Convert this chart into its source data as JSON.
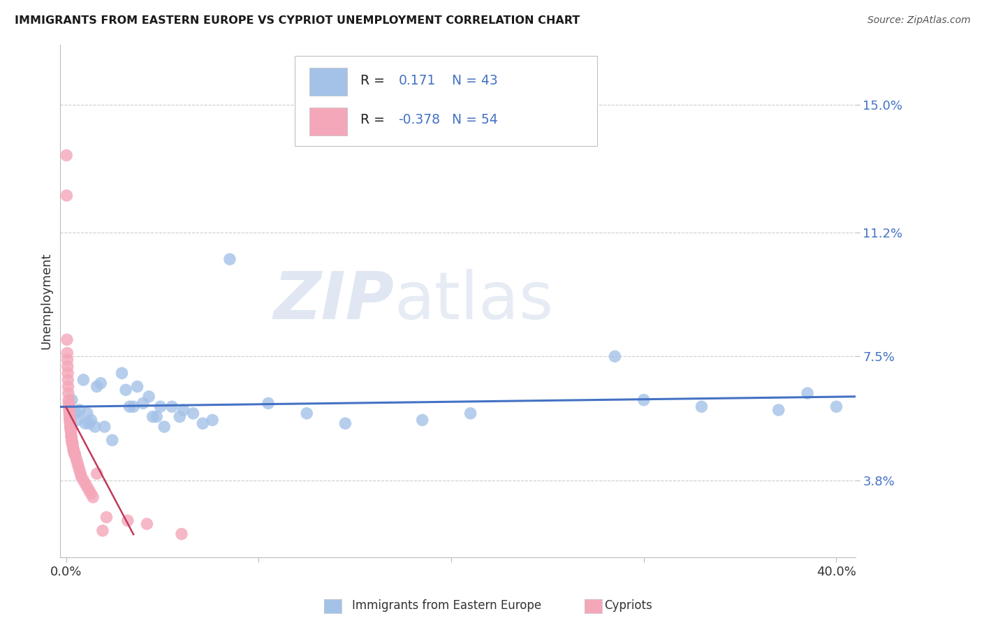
{
  "title": "IMMIGRANTS FROM EASTERN EUROPE VS CYPRIOT UNEMPLOYMENT CORRELATION CHART",
  "source": "Source: ZipAtlas.com",
  "ylabel": "Unemployment",
  "y_ticks": [
    3.8,
    7.5,
    11.2,
    15.0
  ],
  "y_lim": [
    1.5,
    16.8
  ],
  "x_lim": [
    -0.3,
    41.0
  ],
  "x_ticks": [
    0,
    10,
    20,
    30,
    40
  ],
  "watermark_zip": "ZIP",
  "watermark_atlas": "atlas",
  "blue_color": "#a4c2e8",
  "pink_color": "#f4a7b9",
  "blue_line_color": "#4472c4",
  "pink_line_color": "#c0395a",
  "title_color": "#1a1a1a",
  "source_color": "#555555",
  "tick_color": "#4472c4",
  "label_color": "#333333",
  "grid_color": "#cccccc",
  "legend_border_color": "#c0c0c0",
  "blue_scatter": [
    [
      0.3,
      6.2
    ],
    [
      0.5,
      5.8
    ],
    [
      0.6,
      5.6
    ],
    [
      0.7,
      5.9
    ],
    [
      0.9,
      6.8
    ],
    [
      1.0,
      5.5
    ],
    [
      1.1,
      5.8
    ],
    [
      1.2,
      5.5
    ],
    [
      1.3,
      5.6
    ],
    [
      1.5,
      5.4
    ],
    [
      1.6,
      6.6
    ],
    [
      1.8,
      6.7
    ],
    [
      2.0,
      5.4
    ],
    [
      2.4,
      5.0
    ],
    [
      2.9,
      7.0
    ],
    [
      3.1,
      6.5
    ],
    [
      3.3,
      6.0
    ],
    [
      3.5,
      6.0
    ],
    [
      3.7,
      6.6
    ],
    [
      4.0,
      6.1
    ],
    [
      4.3,
      6.3
    ],
    [
      4.5,
      5.7
    ],
    [
      4.7,
      5.7
    ],
    [
      4.9,
      6.0
    ],
    [
      5.1,
      5.4
    ],
    [
      5.5,
      6.0
    ],
    [
      5.9,
      5.7
    ],
    [
      6.1,
      5.9
    ],
    [
      6.6,
      5.8
    ],
    [
      7.1,
      5.5
    ],
    [
      7.6,
      5.6
    ],
    [
      8.5,
      10.4
    ],
    [
      10.5,
      6.1
    ],
    [
      12.5,
      5.8
    ],
    [
      14.5,
      5.5
    ],
    [
      18.5,
      5.6
    ],
    [
      21.0,
      5.8
    ],
    [
      28.5,
      7.5
    ],
    [
      30.0,
      6.2
    ],
    [
      33.0,
      6.0
    ],
    [
      37.0,
      5.9
    ],
    [
      38.5,
      6.4
    ],
    [
      40.0,
      6.0
    ]
  ],
  "pink_scatter": [
    [
      0.02,
      13.5
    ],
    [
      0.03,
      12.3
    ],
    [
      0.05,
      8.0
    ],
    [
      0.06,
      7.6
    ],
    [
      0.07,
      7.4
    ],
    [
      0.08,
      7.2
    ],
    [
      0.09,
      7.0
    ],
    [
      0.1,
      6.8
    ],
    [
      0.11,
      6.6
    ],
    [
      0.12,
      6.4
    ],
    [
      0.13,
      6.2
    ],
    [
      0.14,
      6.1
    ],
    [
      0.15,
      6.0
    ],
    [
      0.16,
      5.9
    ],
    [
      0.17,
      5.8
    ],
    [
      0.18,
      5.7
    ],
    [
      0.19,
      5.6
    ],
    [
      0.2,
      5.6
    ],
    [
      0.21,
      5.5
    ],
    [
      0.22,
      5.4
    ],
    [
      0.23,
      5.4
    ],
    [
      0.24,
      5.3
    ],
    [
      0.25,
      5.3
    ],
    [
      0.26,
      5.2
    ],
    [
      0.27,
      5.1
    ],
    [
      0.28,
      5.1
    ],
    [
      0.29,
      5.0
    ],
    [
      0.3,
      5.0
    ],
    [
      0.32,
      4.9
    ],
    [
      0.34,
      4.9
    ],
    [
      0.36,
      4.8
    ],
    [
      0.38,
      4.7
    ],
    [
      0.4,
      4.7
    ],
    [
      0.43,
      4.6
    ],
    [
      0.46,
      4.6
    ],
    [
      0.5,
      4.5
    ],
    [
      0.55,
      4.4
    ],
    [
      0.6,
      4.3
    ],
    [
      0.65,
      4.2
    ],
    [
      0.7,
      4.1
    ],
    [
      0.75,
      4.0
    ],
    [
      0.8,
      3.9
    ],
    [
      0.9,
      3.8
    ],
    [
      1.0,
      3.7
    ],
    [
      1.1,
      3.6
    ],
    [
      1.2,
      3.5
    ],
    [
      1.3,
      3.4
    ],
    [
      1.4,
      3.3
    ],
    [
      1.6,
      4.0
    ],
    [
      2.1,
      2.7
    ],
    [
      3.2,
      2.6
    ],
    [
      4.2,
      2.5
    ],
    [
      1.9,
      2.3
    ],
    [
      6.0,
      2.2
    ]
  ],
  "pink_trend_x": [
    0.0,
    3.5
  ],
  "blue_trend_x_start": -0.3,
  "blue_trend_x_end": 41.0
}
